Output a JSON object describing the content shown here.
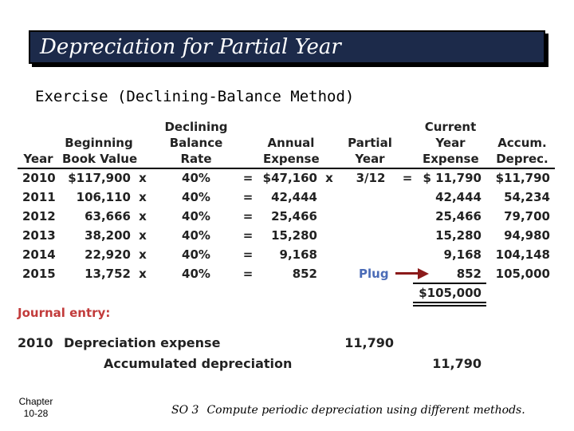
{
  "title": "Depreciation for Partial Year",
  "subtitle": "Exercise (Declining-Balance Method)",
  "headers": {
    "year": "Year",
    "beginning_book_value": [
      "Beginning",
      "Book Value"
    ],
    "declining_balance_rate": [
      "Declining",
      "Balance",
      "Rate"
    ],
    "annual_expense": [
      "Annual",
      "Expense"
    ],
    "partial_year": [
      "Partial",
      "Year"
    ],
    "current_year_expense": [
      "Current",
      "Year",
      "Expense"
    ],
    "accum_deprec": [
      "Accum.",
      "Deprec."
    ]
  },
  "rows": [
    {
      "year": "2010",
      "bv": "$117,900",
      "x1": "x",
      "rate": "40%",
      "eq1": "=",
      "annual": "$47,160",
      "x2": "x",
      "partial": "3/12",
      "eq2": "=",
      "current": "$ 11,790",
      "accum": "$11,790"
    },
    {
      "year": "2011",
      "bv": "106,110",
      "x1": "x",
      "rate": "40%",
      "eq1": "=",
      "annual": "42,444",
      "x2": "",
      "partial": "",
      "eq2": "",
      "current": "42,444",
      "accum": "54,234"
    },
    {
      "year": "2012",
      "bv": "63,666",
      "x1": "x",
      "rate": "40%",
      "eq1": "=",
      "annual": "25,466",
      "x2": "",
      "partial": "",
      "eq2": "",
      "current": "25,466",
      "accum": "79,700"
    },
    {
      "year": "2013",
      "bv": "38,200",
      "x1": "x",
      "rate": "40%",
      "eq1": "=",
      "annual": "15,280",
      "x2": "",
      "partial": "",
      "eq2": "",
      "current": "15,280",
      "accum": "94,980"
    },
    {
      "year": "2014",
      "bv": "22,920",
      "x1": "x",
      "rate": "40%",
      "eq1": "=",
      "annual": "9,168",
      "x2": "",
      "partial": "",
      "eq2": "",
      "current": "9,168",
      "accum": "104,148"
    },
    {
      "year": "2015",
      "bv": "13,752",
      "x1": "x",
      "rate": "40%",
      "eq1": "=",
      "annual": "852",
      "x2": "",
      "partial": "",
      "eq2": "",
      "current": "852",
      "accum": "105,000"
    }
  ],
  "plug_label": "Plug",
  "total": "$105,000",
  "journal": {
    "title": "Journal entry:",
    "year": "2010",
    "debit_account": "Depreciation expense",
    "debit_amount": "11,790",
    "credit_account": "Accumulated depreciation",
    "credit_amount": "11,790"
  },
  "footer": {
    "chapter_label": "Chapter",
    "chapter_page": "10-28",
    "so_label": "SO 3",
    "so_text": "Compute periodic depreciation using different methods."
  }
}
